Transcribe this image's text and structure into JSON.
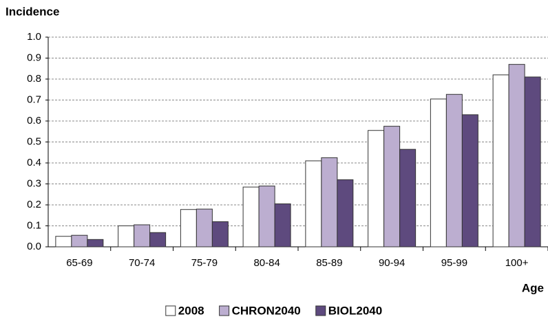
{
  "chart_data": {
    "type": "bar",
    "y_label": "Incidence",
    "x_label": "Age",
    "categories": [
      "65-69",
      "70-74",
      "75-79",
      "80-84",
      "85-89",
      "90-94",
      "95-99",
      "100+"
    ],
    "series": [
      {
        "name": "2008",
        "color": "#ffffff",
        "values": [
          0.05,
          0.1,
          0.178,
          0.285,
          0.41,
          0.555,
          0.705,
          0.82
        ]
      },
      {
        "name": "CHRON2040",
        "color": "#bcaed0",
        "values": [
          0.055,
          0.105,
          0.18,
          0.29,
          0.425,
          0.575,
          0.727,
          0.87
        ]
      },
      {
        "name": "BIOL2040",
        "color": "#5e4a7e",
        "values": [
          0.035,
          0.068,
          0.12,
          0.205,
          0.32,
          0.465,
          0.63,
          0.81
        ]
      }
    ],
    "ylim": [
      0,
      1
    ],
    "yticks": [
      {
        "value": 0,
        "label": "0.0"
      },
      0.1,
      0.2,
      0.3,
      0.4,
      0.5,
      0.6,
      0.7,
      0.8,
      0.9,
      {
        "value": 1,
        "label": "1.0"
      }
    ],
    "grid": true,
    "legend": "bottom"
  }
}
